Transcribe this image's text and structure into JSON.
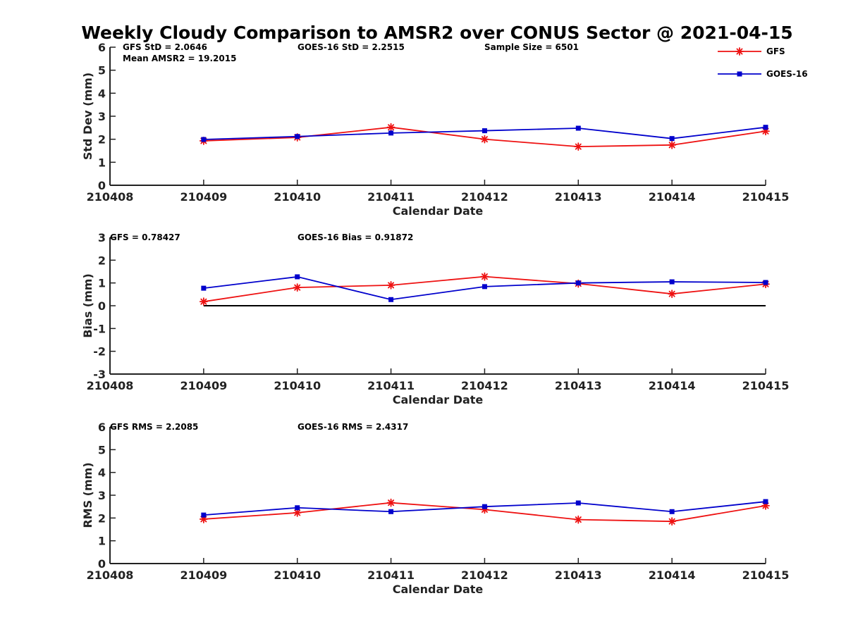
{
  "colors": {
    "gfs": "#ee1111",
    "goes": "#0000cc",
    "axis": "#222222",
    "zero_line": "#000000"
  },
  "chart_data": [
    {
      "type": "line",
      "title": "Weekly Cloudy Comparison to AMSR2 over CONUS Sector @ 2021-04-15",
      "xlabel": "Calendar Date",
      "ylabel": "Std Dev (mm)",
      "x_ticks": [
        "210408",
        "210409",
        "210410",
        "210411",
        "210412",
        "210413",
        "210414",
        "210415"
      ],
      "y_ticks": [
        "0",
        "1",
        "2",
        "3",
        "4",
        "5",
        "6"
      ],
      "ylim": [
        0,
        6
      ],
      "xlim": [
        "210408",
        "210415"
      ],
      "categories": [
        "210409",
        "210410",
        "210411",
        "210412",
        "210413",
        "210414",
        "210415"
      ],
      "series": [
        {
          "name": "GFS",
          "marker": "asterisk",
          "values": [
            1.93,
            2.08,
            2.52,
            2.0,
            1.68,
            1.75,
            2.35
          ]
        },
        {
          "name": "GOES-16",
          "marker": "square",
          "values": [
            1.99,
            2.12,
            2.27,
            2.37,
            2.48,
            2.03,
            2.52
          ]
        }
      ],
      "annotations": [
        "GFS StD = 2.0646",
        "Mean AMSR2 = 19.2015",
        "GOES-16 StD = 2.2515",
        "Sample Size = 6501"
      ],
      "legend": {
        "position": "top-right",
        "entries": [
          "GFS",
          "GOES-16"
        ]
      },
      "grid": false
    },
    {
      "type": "line",
      "xlabel": "Calendar Date",
      "ylabel": "Bias (mm)",
      "x_ticks": [
        "210408",
        "210409",
        "210410",
        "210411",
        "210412",
        "210413",
        "210414",
        "210415"
      ],
      "y_ticks": [
        "-3",
        "-2",
        "-1",
        "0",
        "1",
        "2",
        "3"
      ],
      "ylim": [
        -3,
        3
      ],
      "xlim": [
        "210408",
        "210415"
      ],
      "categories": [
        "210409",
        "210410",
        "210411",
        "210412",
        "210413",
        "210414",
        "210415"
      ],
      "series": [
        {
          "name": "GFS",
          "marker": "asterisk",
          "values": [
            0.18,
            0.8,
            0.9,
            1.28,
            0.97,
            0.52,
            0.95
          ]
        },
        {
          "name": "GOES-16",
          "marker": "square",
          "values": [
            0.77,
            1.27,
            0.27,
            0.84,
            1.0,
            1.05,
            1.02
          ]
        }
      ],
      "reference_line": 0,
      "annotations": [
        "GFS = 0.78427",
        "GOES-16 Bias  = 0.91872"
      ],
      "grid": false
    },
    {
      "type": "line",
      "xlabel": "Calendar Date",
      "ylabel": "RMS (mm)",
      "x_ticks": [
        "210408",
        "210409",
        "210410",
        "210411",
        "210412",
        "210413",
        "210414",
        "210415"
      ],
      "y_ticks": [
        "0",
        "1",
        "2",
        "3",
        "4",
        "5",
        "6"
      ],
      "ylim": [
        0,
        6
      ],
      "xlim": [
        "210408",
        "210415"
      ],
      "categories": [
        "210409",
        "210410",
        "210411",
        "210412",
        "210413",
        "210414",
        "210415"
      ],
      "series": [
        {
          "name": "GFS",
          "marker": "asterisk",
          "values": [
            1.95,
            2.23,
            2.67,
            2.37,
            1.93,
            1.85,
            2.54
          ]
        },
        {
          "name": "GOES-16",
          "marker": "square",
          "values": [
            2.13,
            2.45,
            2.28,
            2.5,
            2.66,
            2.28,
            2.72
          ]
        }
      ],
      "annotations": [
        "GFS RMS = 2.2085",
        "GOES-16 RMS = 2.4317"
      ],
      "grid": false
    }
  ]
}
